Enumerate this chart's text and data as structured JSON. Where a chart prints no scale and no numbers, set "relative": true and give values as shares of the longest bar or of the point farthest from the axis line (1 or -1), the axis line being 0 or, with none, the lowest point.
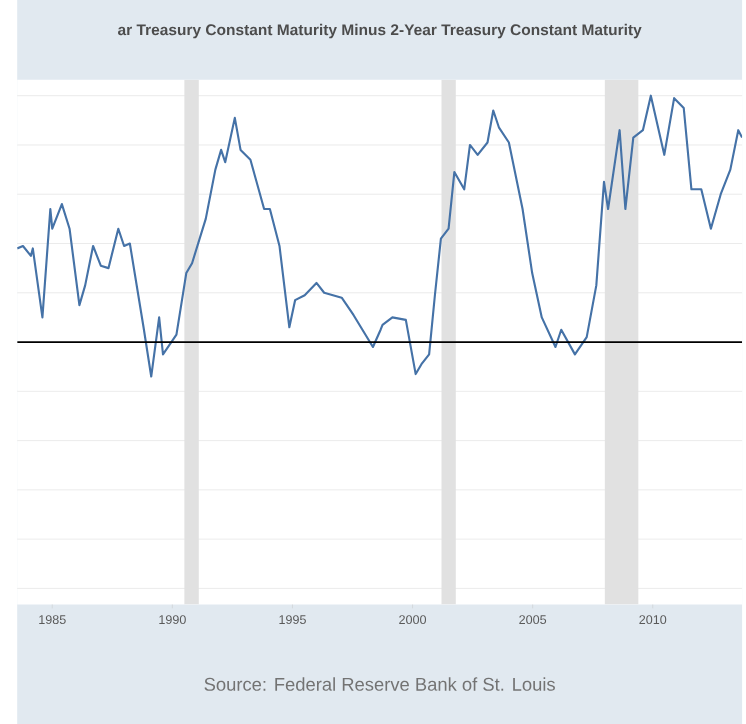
{
  "chart_data": {
    "type": "line",
    "title": "ar Treasury Constant Maturity Minus 2-Year Treasury Constant Maturity",
    "annotations": [
      "Source: Federal Reserve Bank of St. Louis"
    ],
    "relative": true,
    "grid": "y",
    "xlim": [
      1983.54,
      2013.72
    ],
    "xticks": [
      1985,
      1990,
      1995,
      2000,
      2005,
      2010
    ],
    "x": [
      1983.54,
      1983.78,
      1984.11,
      1984.19,
      1984.59,
      1984.92,
      1985.0,
      1985.4,
      1985.72,
      1986.13,
      1986.37,
      1986.7,
      1987.02,
      1987.34,
      1987.75,
      1987.99,
      1988.23,
      1988.8,
      1989.12,
      1989.45,
      1989.61,
      1990.17,
      1990.58,
      1990.82,
      1991.39,
      1991.79,
      1992.03,
      1992.2,
      1992.6,
      1992.84,
      1993.25,
      1993.82,
      1994.06,
      1994.46,
      1994.87,
      1995.11,
      1995.51,
      1996.0,
      1996.32,
      1997.05,
      1997.54,
      1998.35,
      1998.67,
      1998.75,
      1999.16,
      1999.72,
      2000.13,
      2000.37,
      2000.69,
      2000.93,
      2001.18,
      2001.5,
      2001.74,
      2002.15,
      2002.39,
      2002.71,
      2003.12,
      2003.36,
      2003.6,
      2004.01,
      2004.58,
      2004.98,
      2005.38,
      2005.95,
      2006.19,
      2006.76,
      2007.25,
      2007.65,
      2007.97,
      2008.14,
      2008.62,
      2008.86,
      2009.19,
      2009.59,
      2009.92,
      2010.48,
      2010.89,
      2011.29,
      2011.61,
      2012.02,
      2012.42,
      2012.83,
      2013.23,
      2013.56,
      2013.72
    ],
    "series": [
      {
        "color": "#4572a7",
        "values": [
          0.38,
          0.39,
          0.35,
          0.38,
          0.1,
          0.54,
          0.46,
          0.56,
          0.46,
          0.15,
          0.23,
          0.39,
          0.31,
          0.3,
          0.46,
          0.39,
          0.4,
          0.06,
          -0.14,
          0.1,
          -0.05,
          0.03,
          0.28,
          0.32,
          0.5,
          0.7,
          0.78,
          0.73,
          0.91,
          0.78,
          0.74,
          0.54,
          0.54,
          0.39,
          0.06,
          0.17,
          0.19,
          0.24,
          0.2,
          0.18,
          0.11,
          -0.02,
          0.05,
          0.07,
          0.1,
          0.09,
          -0.13,
          -0.09,
          -0.05,
          0.19,
          0.42,
          0.46,
          0.69,
          0.62,
          0.8,
          0.76,
          0.81,
          0.94,
          0.87,
          0.81,
          0.54,
          0.28,
          0.1,
          -0.02,
          0.05,
          -0.05,
          0.02,
          0.23,
          0.65,
          0.54,
          0.86,
          0.54,
          0.83,
          0.86,
          1,
          0.76,
          0.99,
          0.95,
          0.62,
          0.62,
          0.46,
          0.6,
          0.7,
          0.86,
          0.83
        ]
      }
    ],
    "bands": [
      {
        "axis": "x",
        "from": 1990.5,
        "to": 1991.1,
        "color": "#e1e1e1"
      },
      {
        "axis": "x",
        "from": 2001.2,
        "to": 2001.8,
        "color": "#e1e1e1"
      },
      {
        "axis": "x",
        "from": 2008.0,
        "to": 2009.4,
        "color": "#e1e1e1"
      }
    ]
  }
}
